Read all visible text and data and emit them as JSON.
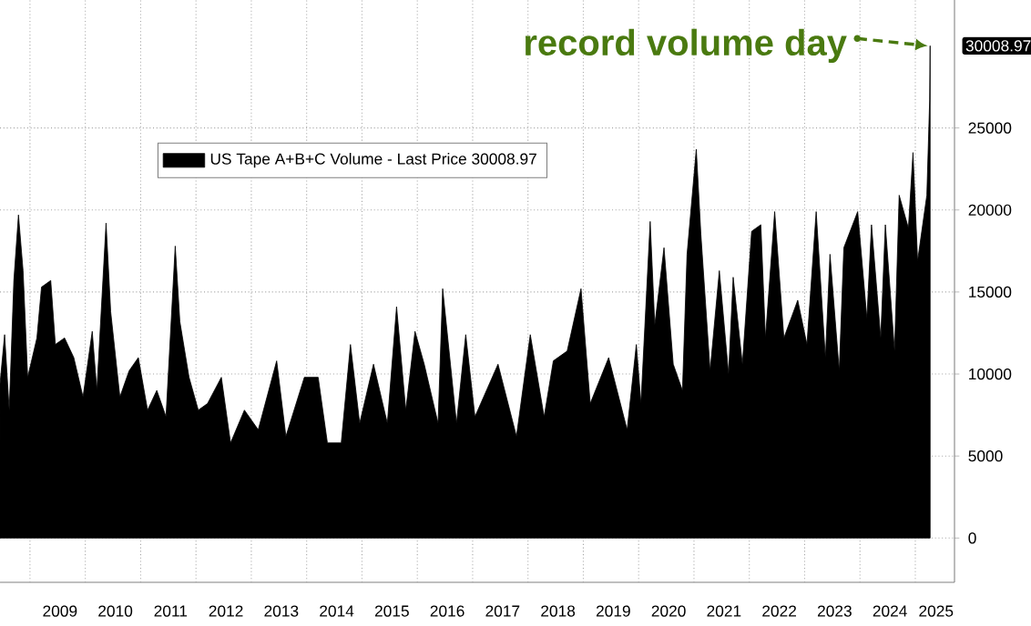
{
  "chart_data": {
    "type": "area",
    "x": [
      "2008-06",
      "2008-07",
      "2008-08",
      "2008-09",
      "2008-10",
      "2008-11",
      "2008-12",
      "2009-02",
      "2009-03",
      "2009-05",
      "2009-06",
      "2009-08",
      "2009-10",
      "2009-12",
      "2010-02",
      "2010-03",
      "2010-05",
      "2010-06",
      "2010-08",
      "2010-10",
      "2010-12",
      "2011-02",
      "2011-04",
      "2011-06",
      "2011-08",
      "2011-09",
      "2011-11",
      "2012-01",
      "2012-03",
      "2012-06",
      "2012-08",
      "2012-11",
      "2013-02",
      "2013-06",
      "2013-08",
      "2013-12",
      "2014-03",
      "2014-05",
      "2014-08",
      "2014-10",
      "2014-12",
      "2015-03",
      "2015-06",
      "2015-08",
      "2015-10",
      "2015-12",
      "2016-02",
      "2016-05",
      "2016-06",
      "2016-09",
      "2016-11",
      "2017-01",
      "2017-06",
      "2017-10",
      "2018-01",
      "2018-04",
      "2018-06",
      "2018-09",
      "2018-12",
      "2019-02",
      "2019-06",
      "2019-10",
      "2019-12",
      "2020-01",
      "2020-03",
      "2020-04",
      "2020-06",
      "2020-08",
      "2020-10",
      "2020-11",
      "2021-01",
      "2021-02",
      "2021-04",
      "2021-06",
      "2021-08",
      "2021-09",
      "2021-11",
      "2022-01",
      "2022-03",
      "2022-04",
      "2022-06",
      "2022-08",
      "2022-11",
      "2023-01",
      "2023-03",
      "2023-05",
      "2023-06",
      "2023-08",
      "2023-09",
      "2023-12",
      "2024-02",
      "2024-03",
      "2024-05",
      "2024-06",
      "2024-08",
      "2024-09",
      "2024-11",
      "2024-12",
      "2025-01",
      "2025-03",
      "2025-04-04",
      "2025-04-07"
    ],
    "series": [
      {
        "name": "US Tape A+B+C Volume - Last Price 30008.97",
        "color": "#000000",
        "values": [
          9400,
          12400,
          7800,
          15700,
          19700,
          16300,
          9800,
          12200,
          15300,
          15700,
          11800,
          12200,
          11000,
          8600,
          12600,
          9000,
          19200,
          13800,
          8600,
          10200,
          11000,
          7800,
          9000,
          7400,
          17800,
          13200,
          9800,
          7800,
          8200,
          9800,
          5800,
          7800,
          6600,
          10800,
          6200,
          9800,
          9800,
          5800,
          5800,
          11800,
          7000,
          10600,
          7000,
          14100,
          7800,
          12600,
          10600,
          7000,
          15200,
          7000,
          12400,
          7400,
          10600,
          6200,
          12400,
          7400,
          10800,
          11400,
          15200,
          8200,
          11000,
          6600,
          11800,
          8200,
          19300,
          13000,
          17700,
          10600,
          9000,
          17300,
          23700,
          18500,
          10200,
          16300,
          10000,
          15900,
          10600,
          18700,
          19100,
          12200,
          19900,
          12200,
          14500,
          11800,
          19900,
          11000,
          17300,
          10200,
          17700,
          19900,
          13400,
          19100,
          12200,
          19100,
          11400,
          20900,
          18900,
          23500,
          16900,
          20900,
          26700,
          30008.97
        ]
      }
    ],
    "xlim": [
      "2008-06",
      "2025-09"
    ],
    "xticks": [
      {
        "value": "2009",
        "label": null
      },
      {
        "value": "2009-07",
        "label": "2009"
      },
      {
        "value": "2010",
        "label": null
      },
      {
        "value": "2010-07",
        "label": "2010"
      },
      {
        "value": "2011",
        "label": null
      },
      {
        "value": "2011-07",
        "label": "2011"
      },
      {
        "value": "2012",
        "label": null
      },
      {
        "value": "2012-07",
        "label": "2012"
      },
      {
        "value": "2013",
        "label": null
      },
      {
        "value": "2013-07",
        "label": "2013"
      },
      {
        "value": "2014",
        "label": null
      },
      {
        "value": "2014-07",
        "label": "2014"
      },
      {
        "value": "2015",
        "label": null
      },
      {
        "value": "2015-07",
        "label": "2015"
      },
      {
        "value": "2016",
        "label": null
      },
      {
        "value": "2016-07",
        "label": "2016"
      },
      {
        "value": "2017",
        "label": null
      },
      {
        "value": "2017-07",
        "label": "2017"
      },
      {
        "value": "2018",
        "label": null
      },
      {
        "value": "2018-07",
        "label": "2018"
      },
      {
        "value": "2019",
        "label": null
      },
      {
        "value": "2019-07",
        "label": "2019"
      },
      {
        "value": "2020",
        "label": null
      },
      {
        "value": "2020-07",
        "label": "2020"
      },
      {
        "value": "2021",
        "label": null
      },
      {
        "value": "2021-07",
        "label": "2021"
      },
      {
        "value": "2022",
        "label": null
      },
      {
        "value": "2022-07",
        "label": "2022"
      },
      {
        "value": "2023",
        "label": null
      },
      {
        "value": "2023-07",
        "label": "2023"
      },
      {
        "value": "2024",
        "label": null
      },
      {
        "value": "2024-07",
        "label": "2024"
      },
      {
        "value": "2025",
        "label": null
      },
      {
        "value": "2025-05",
        "label": "2025"
      }
    ],
    "ylim": [
      -2700,
      32800
    ],
    "yticks": [
      0,
      5000,
      10000,
      15000,
      20000,
      25000
    ],
    "grid": true,
    "legend": "top left",
    "annotations": [
      {
        "text": "record volume day",
        "x": "2025-04-07",
        "y": 30008.97
      },
      {
        "text": "30008.97",
        "x": "2025-04-07",
        "y": 30008.97
      }
    ]
  }
}
